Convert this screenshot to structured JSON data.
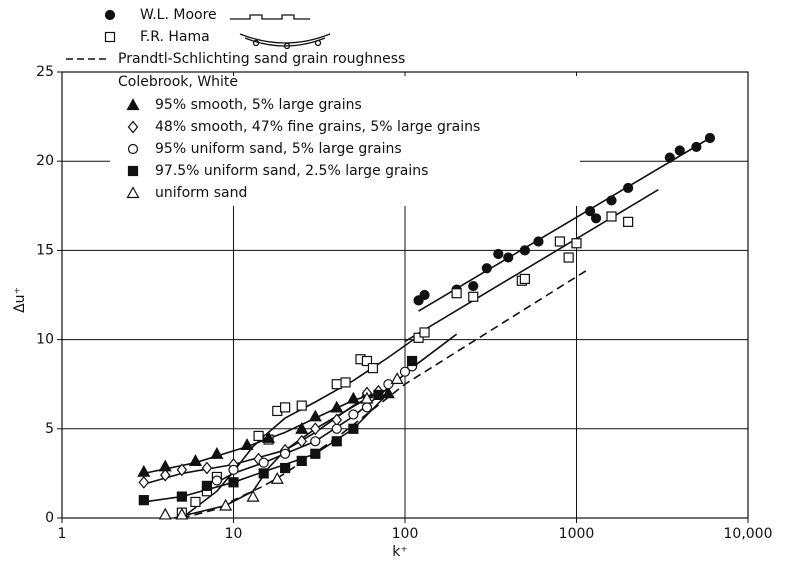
{
  "chart_data": {
    "type": "scatter",
    "xscale": "log",
    "grid": true,
    "xlabel": "k⁺",
    "ylabel": "Δu⁺",
    "xlim": [
      1,
      10000
    ],
    "ylim": [
      0,
      25
    ],
    "xticks": [
      1,
      10,
      100,
      1000,
      {
        "value": 10000,
        "label": "10,000"
      }
    ],
    "yticks": [
      0,
      5,
      10,
      15,
      20,
      25
    ],
    "legend_group": "Colebrook, White",
    "series": [
      {
        "name": "W.L. Moore",
        "marker": "circle-filled",
        "color": "#111111",
        "x": [
          120,
          130,
          200,
          250,
          300,
          350,
          400,
          500,
          600,
          1200,
          1300,
          1600,
          2000,
          3500,
          4000,
          5000,
          6000
        ],
        "values": [
          12.2,
          12.5,
          12.8,
          13,
          14,
          14.8,
          14.6,
          15,
          15.5,
          17.2,
          16.8,
          17.8,
          18.5,
          20.2,
          20.6,
          20.8,
          21.3
        ]
      },
      {
        "name": "F.R. Hama",
        "marker": "square-open",
        "color": "#111111",
        "x": [
          5,
          6,
          7,
          8,
          14,
          16,
          18,
          20,
          25,
          40,
          45,
          55,
          60,
          65,
          120,
          130,
          200,
          250,
          480,
          500,
          800,
          900,
          1000,
          1600,
          2000
        ],
        "values": [
          0.3,
          0.9,
          1.5,
          2.3,
          4.6,
          4.4,
          6,
          6.2,
          6.3,
          7.5,
          7.6,
          8.9,
          8.8,
          8.4,
          10.1,
          10.4,
          12.6,
          12.4,
          13.3,
          13.4,
          15.5,
          14.6,
          15.4,
          16.9,
          16.6
        ]
      },
      {
        "name": "Prandtl-Schlichting sand grain roughness",
        "marker": "dashed-line",
        "color": "#111111",
        "x": [
          5,
          8,
          10,
          15,
          20,
          40,
          100,
          1200
        ],
        "values": [
          0,
          0.5,
          1,
          1.8,
          2.5,
          4.5,
          7.5,
          14
        ]
      },
      {
        "name": "95% smooth, 5% large grains",
        "marker": "triangle-filled",
        "color": "#111111",
        "group": "Colebrook, White",
        "x": [
          3,
          4,
          6,
          8,
          12,
          16,
          25,
          30,
          40,
          50,
          60,
          80
        ],
        "values": [
          2.6,
          2.9,
          3.2,
          3.6,
          4.1,
          4.5,
          5,
          5.7,
          6.2,
          6.7,
          7,
          7
        ]
      },
      {
        "name": "48% smooth, 47% fine grains, 5% large grains",
        "marker": "diamond-open",
        "color": "#111111",
        "group": "Colebrook, White",
        "x": [
          3,
          4,
          5,
          7,
          10,
          14,
          20,
          25,
          30,
          40,
          60,
          70
        ],
        "values": [
          2,
          2.4,
          2.7,
          2.8,
          3,
          3.3,
          3.8,
          4.3,
          5,
          5.5,
          7,
          7.1
        ]
      },
      {
        "name": "95% uniform sand, 5% large grains",
        "marker": "circle-open",
        "color": "#111111",
        "group": "Colebrook, White",
        "x": [
          8,
          10,
          15,
          20,
          30,
          40,
          50,
          60,
          80,
          100,
          110
        ],
        "values": [
          2.1,
          2.7,
          3.1,
          3.6,
          4.3,
          5,
          5.8,
          6.2,
          7.5,
          8.2,
          8.5
        ]
      },
      {
        "name": "97.5% uniform sand, 2.5% large grains",
        "marker": "square-filled",
        "color": "#111111",
        "group": "Colebrook, White",
        "x": [
          3,
          5,
          7,
          10,
          15,
          20,
          25,
          30,
          40,
          50,
          70,
          110
        ],
        "values": [
          1,
          1.2,
          1.8,
          2,
          2.5,
          2.8,
          3.2,
          3.6,
          4.3,
          5,
          6.9,
          8.8
        ]
      },
      {
        "name": "uniform sand",
        "marker": "triangle-open",
        "color": "#111111",
        "group": "Colebrook, White",
        "x": [
          4,
          5,
          9,
          13,
          18,
          60,
          90
        ],
        "values": [
          0.2,
          0.2,
          0.7,
          1.2,
          2.2,
          6.7,
          7.8
        ]
      }
    ],
    "lines": [
      {
        "x": [
          120,
          6000
        ],
        "y": [
          11.6,
          21.3
        ]
      },
      {
        "x": [
          100,
          3000
        ],
        "y": [
          9.9,
          18.4
        ]
      },
      {
        "x": [
          3,
          6,
          12,
          20,
          30,
          50,
          80
        ],
        "y": [
          2.5,
          3.1,
          4,
          4.8,
          5.6,
          6.6,
          7.2
        ]
      },
      {
        "x": [
          3,
          5,
          10,
          20,
          30,
          50,
          70
        ],
        "y": [
          1.9,
          2.5,
          3,
          3.8,
          4.8,
          6.3,
          7
        ]
      },
      {
        "x": [
          8,
          10,
          15,
          20,
          30,
          50,
          80,
          120,
          200
        ],
        "y": [
          2,
          2.5,
          3.1,
          3.6,
          4.3,
          5.7,
          7.3,
          8.7,
          10.3
        ]
      },
      {
        "x": [
          3,
          5,
          10,
          15,
          20,
          30,
          50,
          80
        ],
        "y": [
          0.9,
          1.2,
          2,
          2.6,
          3,
          3.6,
          5,
          7
        ]
      },
      {
        "x": [
          5,
          8,
          10,
          13,
          16,
          20,
          30,
          50,
          80,
          120
        ],
        "y": [
          0,
          1.5,
          2.6,
          4,
          4.8,
          5.6,
          6.5,
          7.7,
          9,
          10.2
        ]
      },
      {
        "x": [
          4.5,
          9,
          13,
          16,
          20,
          30,
          60
        ],
        "y": [
          0,
          0.7,
          1.5,
          2.8,
          3.8,
          5,
          6.7
        ]
      }
    ]
  }
}
